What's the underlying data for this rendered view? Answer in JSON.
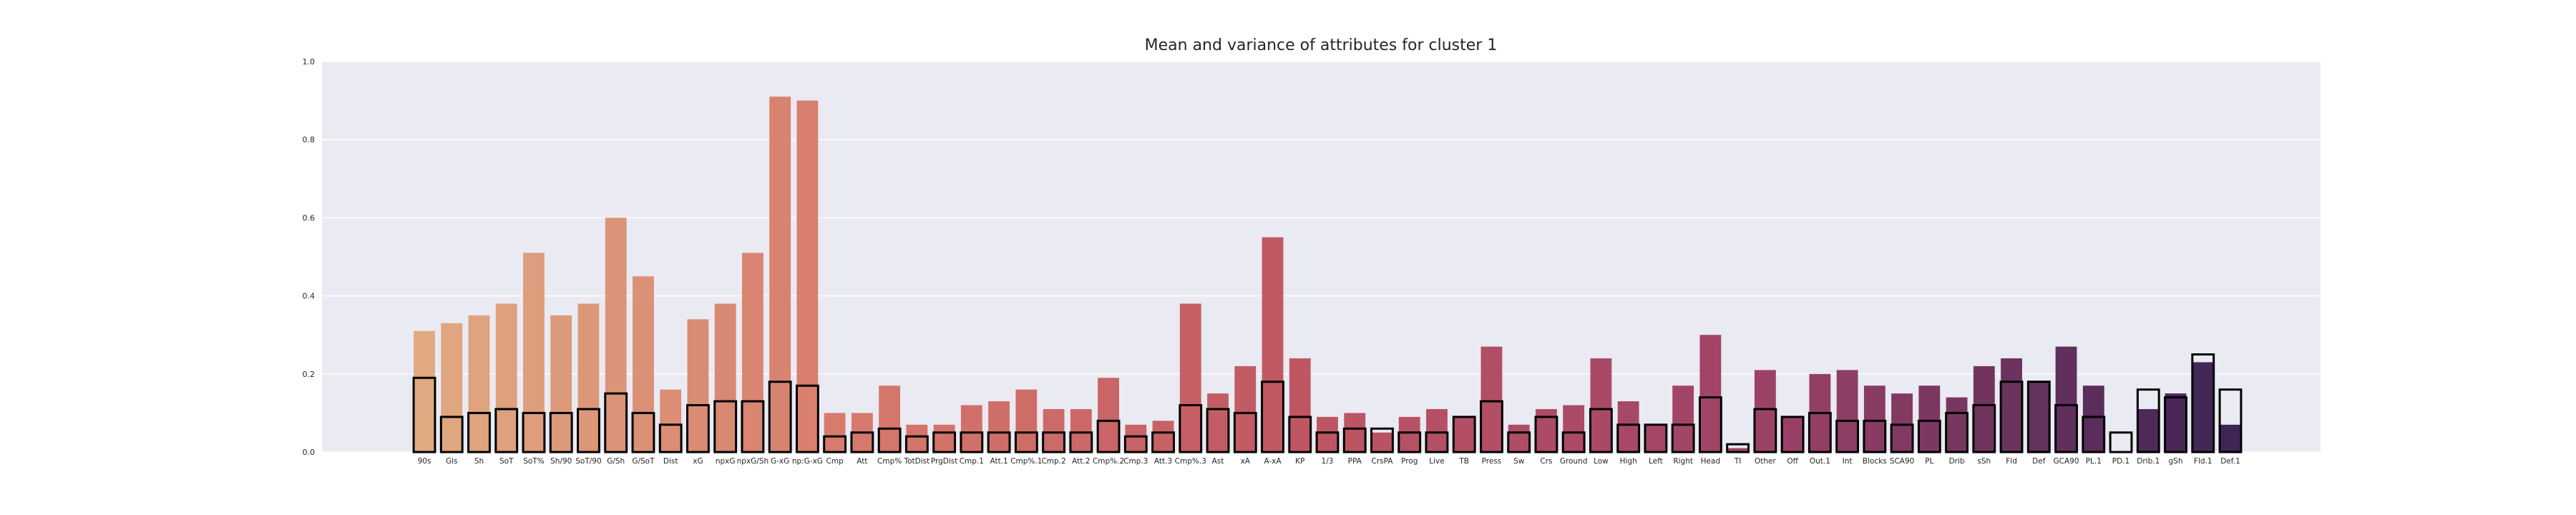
{
  "chart_data": {
    "type": "bar",
    "title": "Mean and variance of attributes for cluster 1",
    "xlabel": "",
    "ylabel": "",
    "ylim": [
      0,
      1
    ],
    "yticks": [
      "0.0",
      "0.2",
      "0.4",
      "0.6",
      "0.8",
      "1.0"
    ],
    "grid": true,
    "legend": "none",
    "categories": [
      "90s",
      "Gls",
      "Sh",
      "SoT",
      "SoT%",
      "Sh/90",
      "SoT/90",
      "G/Sh",
      "G/SoT",
      "Dist",
      "xG",
      "npxG",
      "npxG/Sh",
      "G-xG",
      "np:G-xG",
      "Cmp",
      "Att",
      "Cmp%",
      "TotDist",
      "PrgDist",
      "Cmp.1",
      "Att.1",
      "Cmp%.1",
      "Cmp.2",
      "Att.2",
      "Cmp%.2",
      "Cmp.3",
      "Att.3",
      "Cmp%.3",
      "Ast",
      "xA",
      "A-xA",
      "KP",
      "1/3",
      "PPA",
      "CrsPA",
      "Prog",
      "Live",
      "TB",
      "Press",
      "Sw",
      "Crs",
      "Ground",
      "Low",
      "High",
      "Left",
      "Right",
      "Head",
      "TI",
      "Other",
      "Off",
      "Out.1",
      "Int",
      "Blocks",
      "SCA90",
      "PL",
      "Drib",
      "sSh",
      "Fld",
      "Def",
      "GCA90",
      "PL.1",
      "PD.1",
      "Drib.1",
      "gSh",
      "Fld.1",
      "Def.1"
    ],
    "series": [
      {
        "role": "mean",
        "values": [
          0.31,
          0.33,
          0.35,
          0.38,
          0.51,
          0.35,
          0.38,
          0.6,
          0.45,
          0.16,
          0.34,
          0.38,
          0.51,
          0.91,
          0.9,
          0.1,
          0.1,
          0.17,
          0.07,
          0.07,
          0.12,
          0.13,
          0.16,
          0.11,
          0.11,
          0.19,
          0.07,
          0.08,
          0.38,
          0.15,
          0.22,
          0.55,
          0.24,
          0.09,
          0.1,
          0.05,
          0.09,
          0.11,
          0.09,
          0.27,
          0.07,
          0.11,
          0.12,
          0.24,
          0.13,
          0.07,
          0.17,
          0.3,
          0.01,
          0.21,
          0.09,
          0.2,
          0.21,
          0.17,
          0.15,
          0.17,
          0.14,
          0.22,
          0.24,
          0.18,
          0.27,
          0.17,
          0.0,
          0.11,
          0.15,
          0.23,
          0.07
        ]
      },
      {
        "role": "variance",
        "values": [
          0.19,
          0.09,
          0.1,
          0.11,
          0.1,
          0.1,
          0.11,
          0.15,
          0.1,
          0.07,
          0.12,
          0.13,
          0.13,
          0.18,
          0.17,
          0.04,
          0.05,
          0.06,
          0.04,
          0.05,
          0.05,
          0.05,
          0.05,
          0.05,
          0.05,
          0.08,
          0.04,
          0.05,
          0.12,
          0.11,
          0.1,
          0.18,
          0.09,
          0.05,
          0.06,
          0.06,
          0.05,
          0.05,
          0.09,
          0.13,
          0.05,
          0.09,
          0.05,
          0.11,
          0.07,
          0.07,
          0.07,
          0.14,
          0.02,
          0.11,
          0.09,
          0.1,
          0.08,
          0.08,
          0.07,
          0.08,
          0.1,
          0.12,
          0.18,
          0.18,
          0.12,
          0.09,
          0.05,
          0.16,
          0.14,
          0.25,
          0.16
        ]
      }
    ],
    "colors": {
      "background": "#eaeaf2",
      "grid": "#ffffff",
      "variance_edge": "#000000",
      "palette_start": "#e0a981",
      "palette_mid1": "#d6776b",
      "palette_mid2": "#bd5563",
      "palette_mid3": "#9c4167",
      "palette_end": "#3d2555"
    }
  }
}
